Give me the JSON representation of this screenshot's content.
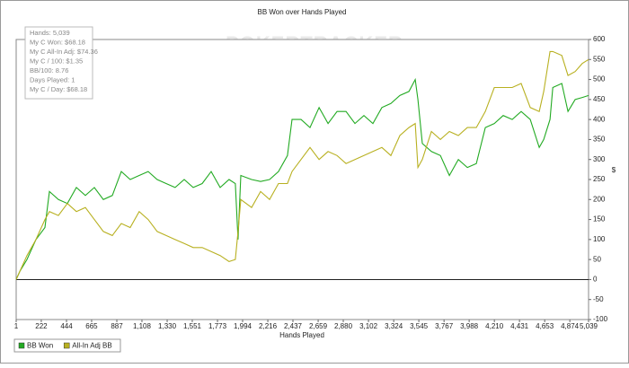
{
  "chart_data": {
    "type": "line",
    "title": "BB Won over Hands Played",
    "watermark": "POKERTRACKER",
    "x_label": "Hands Played",
    "y_label": "$",
    "info": [
      "Hands: 5,039",
      "My C Won: $68.18",
      "My C All-In Adj: $74.36",
      "My C / 100: $1.35",
      "BB/100: 8.76",
      "Days Played: 1",
      "My C / Day: $68.18"
    ],
    "x": [
      1,
      33,
      96,
      175,
      254,
      294,
      373,
      452,
      531,
      610,
      689,
      768,
      847,
      926,
      1005,
      1084,
      1163,
      1242,
      1321,
      1400,
      1480,
      1559,
      1638,
      1717,
      1796,
      1875,
      1930,
      1954,
      1978,
      2073,
      2152,
      2231,
      2310,
      2389,
      2429,
      2508,
      2587,
      2667,
      2746,
      2825,
      2904,
      2983,
      3062,
      3141,
      3220,
      3299,
      3378,
      3458,
      3513,
      3537,
      3576,
      3656,
      3735,
      3814,
      3893,
      3972,
      4051,
      4130,
      4209,
      4288,
      4367,
      4446,
      4526,
      4605,
      4644,
      4700,
      4724,
      4803,
      4858,
      4921,
      4984,
      5039
    ],
    "series": [
      {
        "name": "BB Won",
        "color": "#22aa22",
        "values": [
          0,
          20,
          50,
          100,
          130,
          220,
          200,
          190,
          230,
          210,
          230,
          200,
          210,
          270,
          250,
          260,
          270,
          250,
          240,
          230,
          250,
          230,
          240,
          270,
          230,
          250,
          240,
          100,
          260,
          250,
          245,
          250,
          270,
          310,
          400,
          400,
          380,
          430,
          390,
          420,
          420,
          390,
          410,
          390,
          430,
          440,
          460,
          470,
          500,
          450,
          340,
          320,
          310,
          260,
          300,
          280,
          290,
          380,
          390,
          410,
          400,
          420,
          400,
          330,
          350,
          400,
          480,
          490,
          420,
          450,
          455,
          460
        ]
      },
      {
        "name": "All-In Adj BB",
        "color": "#b8b020",
        "values": [
          0,
          20,
          60,
          100,
          150,
          170,
          160,
          190,
          170,
          180,
          150,
          120,
          110,
          140,
          130,
          170,
          150,
          120,
          110,
          100,
          90,
          80,
          80,
          70,
          60,
          45,
          50,
          120,
          200,
          180,
          220,
          200,
          240,
          240,
          270,
          300,
          330,
          300,
          320,
          310,
          290,
          300,
          310,
          320,
          330,
          310,
          360,
          380,
          390,
          280,
          300,
          370,
          350,
          370,
          360,
          380,
          380,
          420,
          480,
          480,
          480,
          490,
          430,
          420,
          470,
          570,
          570,
          560,
          510,
          520,
          540,
          550
        ]
      }
    ],
    "xlim": [
      1,
      5039
    ],
    "xticks": [
      1,
      {
        "value": 222,
        "label": "222"
      },
      {
        "value": 444,
        "label": "444"
      },
      {
        "value": 665,
        "label": "665"
      },
      {
        "value": 887,
        "label": "887"
      },
      {
        "value": 1108,
        "label": "1,108"
      },
      {
        "value": 1330,
        "label": "1,330"
      },
      {
        "value": 1551,
        "label": "1,551"
      },
      {
        "value": 1773,
        "label": "1,773"
      },
      {
        "value": 1994,
        "label": "1,994"
      },
      {
        "value": 2216,
        "label": "2,216"
      },
      {
        "value": 2437,
        "label": "2,437"
      },
      {
        "value": 2659,
        "label": "2,659"
      },
      {
        "value": 2880,
        "label": "2,880"
      },
      {
        "value": 3102,
        "label": "3,102"
      },
      {
        "value": 3324,
        "label": "3,324"
      },
      {
        "value": 3545,
        "label": "3,545"
      },
      {
        "value": 3767,
        "label": "3,767"
      },
      {
        "value": 3988,
        "label": "3,988"
      },
      {
        "value": 4210,
        "label": "4,210"
      },
      {
        "value": 4431,
        "label": "4,431"
      },
      {
        "value": 4653,
        "label": "4,653"
      },
      {
        "value": 4874,
        "label": "4,874"
      },
      {
        "value": 5039,
        "label": "5,039"
      }
    ],
    "ylim": [
      -100,
      600
    ],
    "yticks": [
      -100,
      -50,
      0,
      50,
      100,
      150,
      200,
      250,
      300,
      350,
      400,
      450,
      500,
      550,
      600
    ],
    "grid": false
  }
}
